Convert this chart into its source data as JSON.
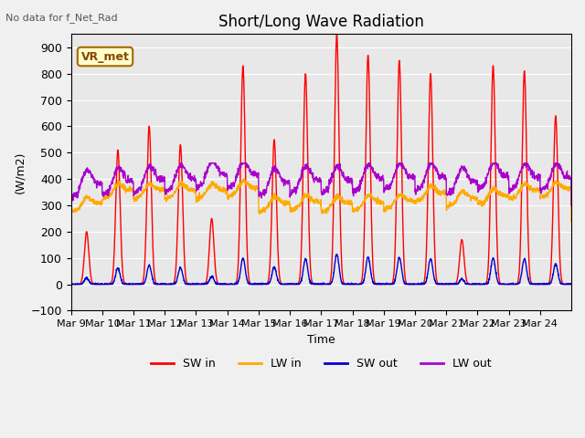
{
  "title": "Short/Long Wave Radiation",
  "ylabel": "(W/m2)",
  "xlabel": "Time",
  "ylim": [
    -100,
    950
  ],
  "yticks": [
    -100,
    0,
    100,
    200,
    300,
    400,
    500,
    600,
    700,
    800,
    900
  ],
  "bg_color": "#e8e8e8",
  "fig_color": "#f0f0f0",
  "note_text": "No data for f_Net_Rad",
  "box_label": "VR_met",
  "x_tick_labels": [
    "Mar 9",
    "Mar 10",
    "Mar 11",
    "Mar 12",
    "Mar 13",
    "Mar 14",
    "Mar 15",
    "Mar 16",
    "Mar 17",
    "Mar 18",
    "Mar 19",
    "Mar 20",
    "Mar 21",
    "Mar 22",
    "Mar 23",
    "Mar 24"
  ],
  "sw_in_color": "#ff0000",
  "lw_in_color": "#ffaa00",
  "sw_out_color": "#0000cc",
  "lw_out_color": "#aa00cc",
  "line_width": 1.0,
  "legend_items": [
    "SW in",
    "LW in",
    "SW out",
    "LW out"
  ],
  "n_days": 16,
  "sw_in_peaks": [
    200,
    510,
    600,
    530,
    250,
    830,
    550,
    800,
    950,
    870,
    850,
    800,
    170,
    830,
    810,
    640
  ],
  "lw_in_means": [
    290,
    340,
    340,
    340,
    340,
    350,
    290,
    295,
    290,
    295,
    300,
    330,
    310,
    320,
    340,
    345
  ],
  "lw_out_means": [
    355,
    365,
    370,
    375,
    390,
    390,
    360,
    370,
    370,
    375,
    380,
    380,
    365,
    385,
    380,
    380
  ]
}
